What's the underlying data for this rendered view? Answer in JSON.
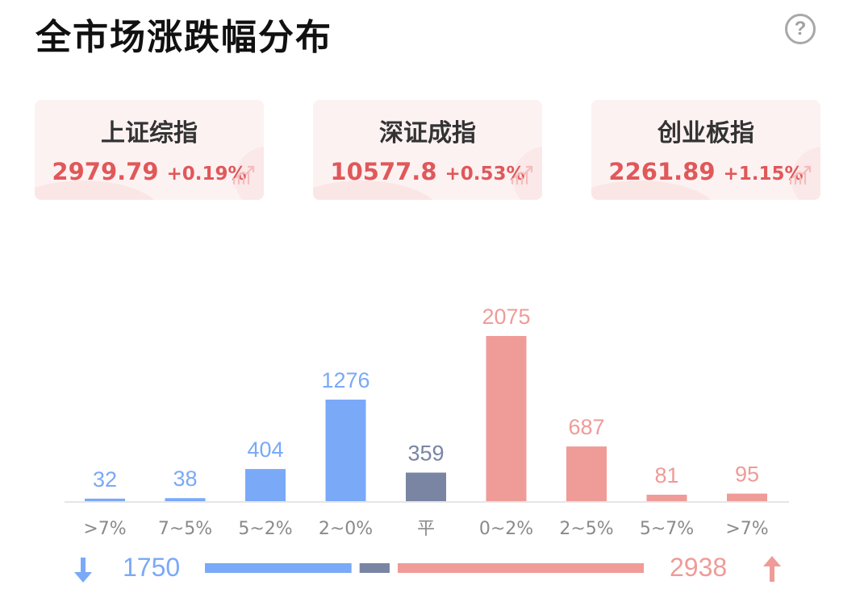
{
  "title": "全市场涨跌幅分布",
  "help_icon": "question-mark-icon",
  "help_glyph": "?",
  "indices": [
    {
      "name": "上证综指",
      "value": "2979.79",
      "change": "+0.19%"
    },
    {
      "name": "深证成指",
      "value": "10577.8",
      "change": "+0.53%"
    },
    {
      "name": "创业板指",
      "value": "2261.89",
      "change": "+1.15%"
    }
  ],
  "colors": {
    "down": "#7aa9f7",
    "flat": "#7a85a4",
    "up": "#ef9b98",
    "up_text": "#e0585a",
    "axis_label": "#8a8a8a"
  },
  "chart_data": {
    "type": "bar",
    "categories": [
      ">7%",
      "7~5%",
      "5~2%",
      "2~0%",
      "平",
      "0~2%",
      "2~5%",
      "5~7%",
      ">7%"
    ],
    "values": [
      32,
      38,
      404,
      1276,
      359,
      2075,
      687,
      81,
      95
    ],
    "bar_groups": [
      "down",
      "down",
      "down",
      "down",
      "flat",
      "up",
      "up",
      "up",
      "up"
    ],
    "ylim": [
      0,
      2075
    ],
    "grid": false,
    "legend": false
  },
  "summary": {
    "down_total": "1750",
    "up_total": "2938",
    "down_icon": "arrow-down-icon",
    "up_icon": "arrow-up-icon",
    "ratio": {
      "down": 1750,
      "flat": 359,
      "up": 2938
    }
  }
}
